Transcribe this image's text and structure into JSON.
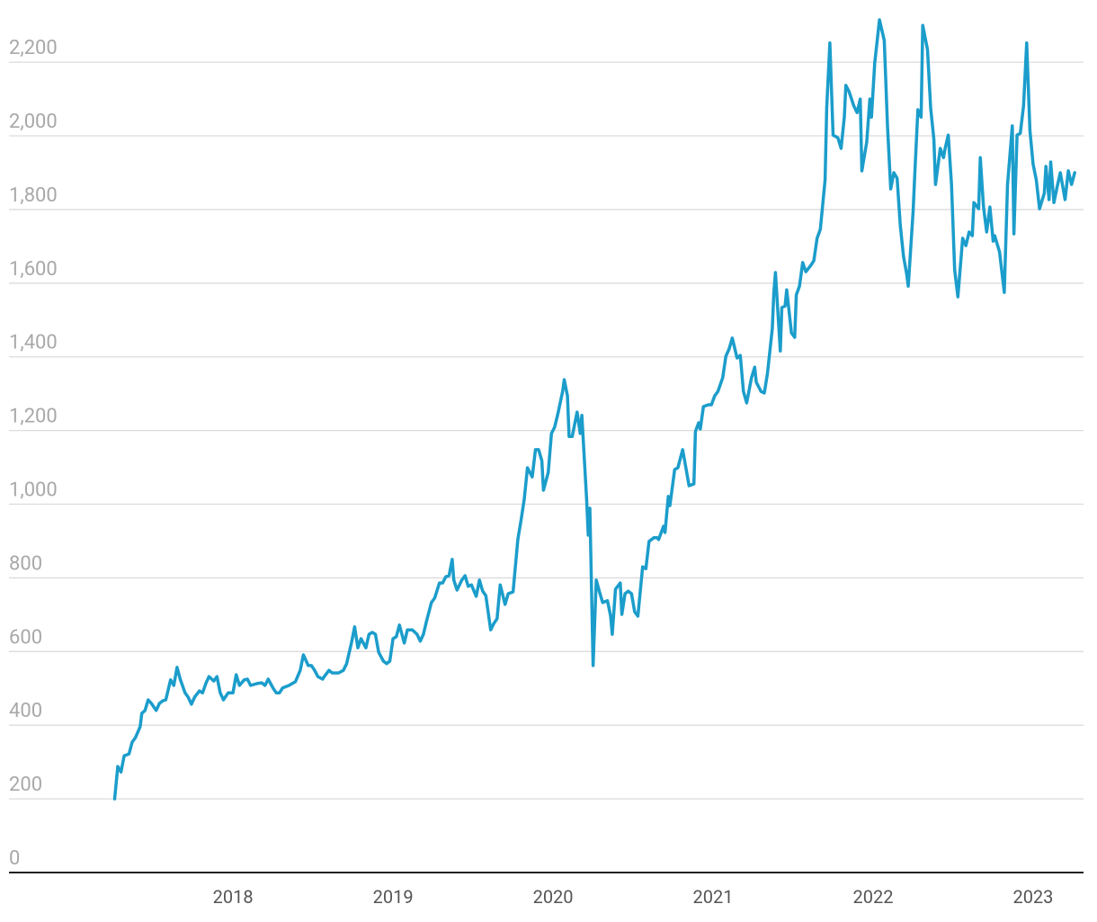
{
  "chart_data": {
    "type": "line",
    "color": "#1b9dcb",
    "grid": true,
    "xlim": [
      2016.6,
      2023.315
    ],
    "xticks": [
      2018,
      2019,
      2020,
      2021,
      2022,
      2023
    ],
    "ylim": [
      0,
      2320
    ],
    "yticks": [
      0,
      200,
      400,
      600,
      800,
      {
        "value": 1000,
        "label": "1,000"
      },
      {
        "value": 1200,
        "label": "1,200"
      },
      {
        "value": 1400,
        "label": "1,400"
      },
      {
        "value": 1600,
        "label": "1,600"
      },
      {
        "value": 1800,
        "label": "1,800"
      },
      {
        "value": 2000,
        "label": "2,000"
      },
      {
        "value": 2200,
        "label": "2,200"
      }
    ],
    "x": [
      2017.26,
      2017.28,
      2017.3,
      2017.32,
      2017.35,
      2017.37,
      2017.39,
      2017.42,
      2017.43,
      2017.45,
      2017.47,
      2017.49,
      2017.52,
      2017.54,
      2017.56,
      2017.58,
      2017.61,
      2017.63,
      2017.65,
      2017.67,
      2017.7,
      2017.72,
      2017.74,
      2017.76,
      2017.79,
      2017.81,
      2017.83,
      2017.85,
      2017.88,
      2017.9,
      2017.92,
      2017.94,
      2017.97,
      2018.0,
      2018.02,
      2018.04,
      2018.07,
      2018.09,
      2018.11,
      2018.15,
      2018.18,
      2018.2,
      2018.22,
      2018.25,
      2018.27,
      2018.29,
      2018.31,
      2018.35,
      2018.37,
      2018.39,
      2018.42,
      2018.44,
      2018.47,
      2018.49,
      2018.51,
      2018.53,
      2018.56,
      2018.57,
      2018.6,
      2018.62,
      2018.64,
      2018.66,
      2018.69,
      2018.71,
      2018.74,
      2018.76,
      2018.78,
      2018.8,
      2018.83,
      2018.85,
      2018.87,
      2018.89,
      2018.91,
      2018.94,
      2018.96,
      2018.98,
      2019.0,
      2019.02,
      2019.04,
      2019.07,
      2019.09,
      2019.12,
      2019.15,
      2019.17,
      2019.19,
      2019.21,
      2019.24,
      2019.26,
      2019.29,
      2019.31,
      2019.33,
      2019.35,
      2019.37,
      2019.38,
      2019.4,
      2019.43,
      2019.45,
      2019.47,
      2019.49,
      2019.52,
      2019.54,
      2019.56,
      2019.58,
      2019.61,
      2019.63,
      2019.65,
      2019.67,
      2019.7,
      2019.72,
      2019.75,
      2019.78,
      2019.8,
      2019.82,
      2019.84,
      2019.87,
      2019.89,
      2019.91,
      2019.93,
      2019.94,
      2019.97,
      2019.99,
      2020.01,
      2020.03,
      2020.06,
      2020.07,
      2020.09,
      2020.1,
      2020.12,
      2020.15,
      2020.17,
      2020.18,
      2020.21,
      2020.22,
      2020.23,
      2020.25,
      2020.27,
      2020.29,
      2020.31,
      2020.34,
      2020.36,
      2020.37,
      2020.39,
      2020.42,
      2020.43,
      2020.45,
      2020.47,
      2020.49,
      2020.51,
      2020.53,
      2020.56,
      2020.58,
      2020.6,
      2020.63,
      2020.65,
      2020.66,
      2020.69,
      2020.7,
      2020.72,
      2020.73,
      2020.76,
      2020.78,
      2020.81,
      2020.83,
      2020.85,
      2020.88,
      2020.89,
      2020.91,
      2020.92,
      2020.94,
      2020.97,
      2020.99,
      2021.01,
      2021.03,
      2021.06,
      2021.08,
      2021.1,
      2021.12,
      2021.15,
      2021.17,
      2021.19,
      2021.21,
      2021.24,
      2021.26,
      2021.27,
      2021.3,
      2021.32,
      2021.34,
      2021.37,
      2021.38,
      2021.39,
      2021.42,
      2021.43,
      2021.45,
      2021.46,
      2021.49,
      2021.51,
      2021.52,
      2021.54,
      2021.56,
      2021.58,
      2021.61,
      2021.63,
      2021.65,
      2021.67,
      2021.7,
      2021.71,
      2021.73,
      2021.75,
      2021.78,
      2021.8,
      2021.82,
      2021.83,
      2021.85,
      2021.88,
      2021.9,
      2021.92,
      2021.93,
      2021.96,
      2021.98,
      2021.99,
      2022.01,
      2022.04,
      2022.07,
      2022.09,
      2022.11,
      2022.13,
      2022.15,
      2022.17,
      2022.19,
      2022.21,
      2022.22,
      2022.25,
      2022.26,
      2022.28,
      2022.3,
      2022.31,
      2022.34,
      2022.36,
      2022.38,
      2022.39,
      2022.42,
      2022.44,
      2022.45,
      2022.47,
      2022.49,
      2022.51,
      2022.53,
      2022.56,
      2022.58,
      2022.6,
      2022.62,
      2022.63,
      2022.66,
      2022.67,
      2022.69,
      2022.71,
      2022.73,
      2022.75,
      2022.76,
      2022.79,
      2022.81,
      2022.82,
      2022.84,
      2022.87,
      2022.88,
      2022.9,
      2022.92,
      2022.94,
      2022.96,
      2022.98,
      2023.0,
      2023.02,
      2023.04,
      2023.07,
      2023.08,
      2023.1,
      2023.11,
      2023.13,
      2023.15,
      2023.17,
      2023.2,
      2023.22,
      2023.24,
      2023.26
    ],
    "values": [
      200,
      288,
      273,
      317,
      322,
      354,
      366,
      396,
      432,
      440,
      469,
      459,
      440,
      459,
      466,
      469,
      523,
      508,
      557,
      525,
      488,
      476,
      457,
      476,
      493,
      488,
      513,
      532,
      520,
      532,
      488,
      469,
      488,
      488,
      537,
      508,
      523,
      525,
      508,
      513,
      515,
      508,
      525,
      501,
      488,
      488,
      501,
      508,
      513,
      518,
      549,
      591,
      562,
      562,
      549,
      532,
      525,
      532,
      549,
      542,
      542,
      542,
      549,
      567,
      623,
      667,
      610,
      635,
      610,
      647,
      652,
      647,
      598,
      574,
      567,
      574,
      635,
      640,
      672,
      623,
      659,
      659,
      647,
      628,
      647,
      684,
      733,
      745,
      786,
      786,
      803,
      806,
      850,
      794,
      767,
      794,
      806,
      777,
      781,
      750,
      794,
      764,
      752,
      659,
      676,
      689,
      781,
      728,
      757,
      762,
      904,
      957,
      1013,
      1099,
      1074,
      1148,
      1148,
      1118,
      1038,
      1086,
      1192,
      1209,
      1245,
      1306,
      1338,
      1294,
      1184,
      1184,
      1250,
      1192,
      1241,
      1013,
      916,
      989,
      562,
      794,
      762,
      733,
      738,
      696,
      647,
      769,
      786,
      701,
      757,
      764,
      757,
      708,
      696,
      830,
      825,
      899,
      909,
      909,
      904,
      940,
      923,
      1021,
      996,
      1094,
      1099,
      1148,
      1099,
      1050,
      1055,
      1197,
      1221,
      1204,
      1265,
      1270,
      1270,
      1294,
      1306,
      1343,
      1402,
      1421,
      1451,
      1397,
      1404,
      1306,
      1275,
      1343,
      1372,
      1331,
      1306,
      1302,
      1355,
      1477,
      1575,
      1629,
      1416,
      1534,
      1538,
      1582,
      1465,
      1453,
      1568,
      1592,
      1656,
      1631,
      1648,
      1661,
      1722,
      1746,
      1880,
      2076,
      2252,
      2002,
      1995,
      1966,
      2051,
      2137,
      2120,
      2081,
      2063,
      2100,
      1905,
      1983,
      2100,
      2051,
      2198,
      2315,
      2259,
      2027,
      1856,
      1900,
      1885,
      1758,
      1673,
      1624,
      1592,
      1795,
      1893,
      2071,
      2051,
      2300,
      2234,
      2076,
      1990,
      1868,
      1966,
      1941,
      1966,
      2002,
      1868,
      1636,
      1563,
      1722,
      1702,
      1739,
      1729,
      1819,
      1802,
      1941,
      1807,
      1739,
      1807,
      1714,
      1729,
      1685,
      1612,
      1575,
      1868,
      2027,
      1734,
      2002,
      2007,
      2081,
      2252,
      2015,
      1924,
      1880,
      1802,
      1844,
      1917,
      1827,
      1929,
      1819,
      1861,
      1900,
      1827,
      1905,
      1868,
      1900
    ]
  }
}
